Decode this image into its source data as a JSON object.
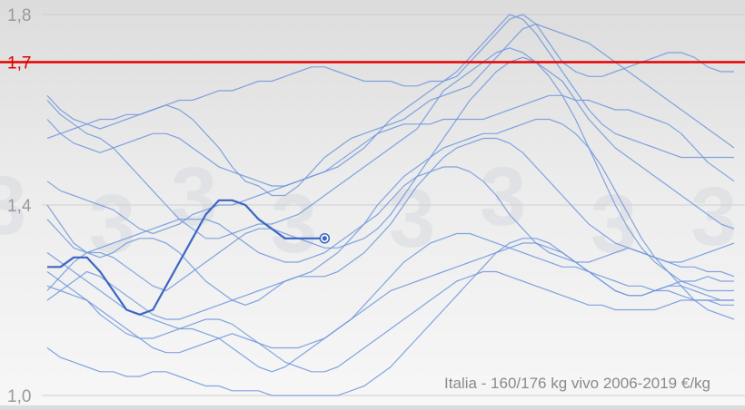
{
  "chart_data": {
    "type": "line",
    "caption": "Italia - 160/176 kg vivo 2006-2019   €/kg",
    "ylim": [
      1.0,
      1.8
    ],
    "yticks": [
      {
        "value": 1.0,
        "label": "1,0"
      },
      {
        "value": 1.4,
        "label": "1,4"
      },
      {
        "value": 1.8,
        "label": "1,8"
      }
    ],
    "reference_line": {
      "value": 1.7,
      "label": "1,7",
      "color": "#e60000"
    },
    "x_weeks": 53,
    "watermark": "3",
    "colors": {
      "historical": "#6f97dd",
      "current": "#3b66c4",
      "grid": "#cfcfcf",
      "tick_text": "#9a9a9a",
      "caption_text": "#8a8a8a"
    },
    "series": [
      {
        "values": [
          1.54,
          1.55,
          1.56,
          1.57,
          1.58,
          1.58,
          1.59,
          1.59,
          1.6,
          1.61,
          1.62,
          1.62,
          1.63,
          1.64,
          1.64,
          1.65,
          1.66,
          1.66,
          1.67,
          1.68,
          1.69,
          1.69,
          1.68,
          1.67,
          1.66,
          1.66,
          1.66,
          1.65,
          1.65,
          1.66,
          1.66,
          1.67,
          1.7,
          1.73,
          1.76,
          1.79,
          1.8,
          1.78,
          1.74,
          1.7,
          1.68,
          1.67,
          1.67,
          1.68,
          1.69,
          1.7,
          1.71,
          1.72,
          1.72,
          1.71,
          1.69,
          1.68,
          1.68
        ]
      },
      {
        "values": [
          1.63,
          1.6,
          1.58,
          1.57,
          1.56,
          1.57,
          1.58,
          1.59,
          1.6,
          1.61,
          1.6,
          1.58,
          1.55,
          1.52,
          1.48,
          1.45,
          1.44,
          1.42,
          1.42,
          1.44,
          1.47,
          1.5,
          1.52,
          1.54,
          1.55,
          1.56,
          1.57,
          1.58,
          1.6,
          1.62,
          1.63,
          1.64,
          1.65,
          1.68,
          1.71,
          1.74,
          1.77,
          1.78,
          1.77,
          1.76,
          1.75,
          1.74,
          1.72,
          1.7,
          1.68,
          1.66,
          1.64,
          1.62,
          1.6,
          1.58,
          1.56,
          1.54,
          1.52
        ]
      },
      {
        "values": [
          1.58,
          1.55,
          1.53,
          1.52,
          1.51,
          1.52,
          1.53,
          1.54,
          1.55,
          1.55,
          1.54,
          1.52,
          1.5,
          1.48,
          1.47,
          1.46,
          1.45,
          1.44,
          1.44,
          1.45,
          1.46,
          1.47,
          1.48,
          1.5,
          1.52,
          1.55,
          1.58,
          1.6,
          1.62,
          1.64,
          1.66,
          1.68,
          1.71,
          1.74,
          1.77,
          1.8,
          1.79,
          1.76,
          1.72,
          1.68,
          1.64,
          1.6,
          1.57,
          1.55,
          1.54,
          1.53,
          1.52,
          1.51,
          1.5,
          1.5,
          1.5,
          1.5,
          1.5
        ]
      },
      {
        "values": [
          1.45,
          1.43,
          1.42,
          1.41,
          1.4,
          1.39,
          1.37,
          1.35,
          1.34,
          1.35,
          1.36,
          1.38,
          1.39,
          1.4,
          1.4,
          1.41,
          1.42,
          1.43,
          1.44,
          1.45,
          1.46,
          1.47,
          1.49,
          1.51,
          1.53,
          1.55,
          1.56,
          1.57,
          1.57,
          1.57,
          1.58,
          1.58,
          1.58,
          1.58,
          1.59,
          1.6,
          1.61,
          1.62,
          1.63,
          1.63,
          1.62,
          1.62,
          1.61,
          1.6,
          1.6,
          1.59,
          1.58,
          1.57,
          1.55,
          1.52,
          1.49,
          1.47,
          1.45
        ]
      },
      {
        "values": [
          1.62,
          1.59,
          1.57,
          1.55,
          1.54,
          1.52,
          1.49,
          1.46,
          1.43,
          1.4,
          1.37,
          1.35,
          1.33,
          1.33,
          1.34,
          1.35,
          1.36,
          1.36,
          1.37,
          1.38,
          1.4,
          1.42,
          1.44,
          1.46,
          1.48,
          1.5,
          1.52,
          1.54,
          1.56,
          1.6,
          1.64,
          1.66,
          1.68,
          1.7,
          1.72,
          1.73,
          1.72,
          1.7,
          1.68,
          1.66,
          1.62,
          1.58,
          1.55,
          1.52,
          1.5,
          1.48,
          1.46,
          1.44,
          1.42,
          1.4,
          1.38,
          1.36,
          1.35
        ]
      },
      {
        "values": [
          1.22,
          1.25,
          1.28,
          1.3,
          1.3,
          1.29,
          1.27,
          1.25,
          1.23,
          1.22,
          1.24,
          1.26,
          1.28,
          1.3,
          1.32,
          1.34,
          1.35,
          1.35,
          1.34,
          1.33,
          1.32,
          1.31,
          1.31,
          1.32,
          1.33,
          1.35,
          1.38,
          1.42,
          1.46,
          1.5,
          1.54,
          1.58,
          1.62,
          1.65,
          1.68,
          1.7,
          1.71,
          1.7,
          1.67,
          1.63,
          1.58,
          1.52,
          1.46,
          1.4,
          1.35,
          1.31,
          1.28,
          1.26,
          1.24,
          1.23,
          1.22,
          1.22,
          1.22
        ]
      },
      {
        "values": [
          1.4,
          1.36,
          1.32,
          1.3,
          1.29,
          1.3,
          1.32,
          1.33,
          1.33,
          1.32,
          1.3,
          1.27,
          1.24,
          1.22,
          1.2,
          1.19,
          1.2,
          1.22,
          1.24,
          1.25,
          1.25,
          1.25,
          1.26,
          1.28,
          1.3,
          1.33,
          1.36,
          1.4,
          1.44,
          1.47,
          1.5,
          1.52,
          1.53,
          1.54,
          1.54,
          1.53,
          1.51,
          1.48,
          1.45,
          1.42,
          1.39,
          1.36,
          1.34,
          1.32,
          1.31,
          1.3,
          1.29,
          1.28,
          1.28,
          1.29,
          1.3,
          1.31,
          1.32
        ]
      },
      {
        "values": [
          1.37,
          1.34,
          1.31,
          1.3,
          1.31,
          1.32,
          1.33,
          1.34,
          1.35,
          1.36,
          1.37,
          1.37,
          1.37,
          1.36,
          1.34,
          1.32,
          1.3,
          1.29,
          1.28,
          1.28,
          1.29,
          1.3,
          1.32,
          1.34,
          1.36,
          1.38,
          1.41,
          1.44,
          1.46,
          1.47,
          1.48,
          1.48,
          1.47,
          1.45,
          1.42,
          1.38,
          1.35,
          1.32,
          1.3,
          1.29,
          1.28,
          1.28,
          1.29,
          1.3,
          1.31,
          1.3,
          1.29,
          1.28,
          1.27,
          1.27,
          1.26,
          1.26,
          1.25
        ]
      },
      {
        "values": [
          1.2,
          1.22,
          1.24,
          1.26,
          1.25,
          1.23,
          1.21,
          1.19,
          1.17,
          1.16,
          1.16,
          1.17,
          1.18,
          1.19,
          1.2,
          1.21,
          1.22,
          1.23,
          1.24,
          1.25,
          1.26,
          1.28,
          1.3,
          1.33,
          1.36,
          1.4,
          1.43,
          1.46,
          1.48,
          1.5,
          1.52,
          1.53,
          1.54,
          1.55,
          1.55,
          1.56,
          1.57,
          1.58,
          1.58,
          1.57,
          1.55,
          1.52,
          1.48,
          1.43,
          1.38,
          1.33,
          1.29,
          1.26,
          1.23,
          1.2,
          1.18,
          1.17,
          1.16
        ]
      },
      {
        "values": [
          1.23,
          1.22,
          1.21,
          1.2,
          1.18,
          1.16,
          1.14,
          1.12,
          1.1,
          1.09,
          1.09,
          1.1,
          1.11,
          1.12,
          1.13,
          1.12,
          1.11,
          1.1,
          1.1,
          1.1,
          1.11,
          1.12,
          1.14,
          1.16,
          1.19,
          1.22,
          1.25,
          1.28,
          1.3,
          1.32,
          1.33,
          1.34,
          1.34,
          1.33,
          1.32,
          1.31,
          1.3,
          1.29,
          1.28,
          1.27,
          1.27,
          1.26,
          1.25,
          1.24,
          1.23,
          1.23,
          1.22,
          1.22,
          1.21,
          1.2,
          1.2,
          1.19,
          1.19
        ]
      },
      {
        "values": [
          1.3,
          1.28,
          1.26,
          1.24,
          1.22,
          1.2,
          1.18,
          1.17,
          1.16,
          1.15,
          1.14,
          1.14,
          1.13,
          1.12,
          1.1,
          1.08,
          1.06,
          1.05,
          1.06,
          1.08,
          1.1,
          1.12,
          1.14,
          1.16,
          1.18,
          1.2,
          1.22,
          1.23,
          1.24,
          1.25,
          1.26,
          1.27,
          1.28,
          1.29,
          1.3,
          1.31,
          1.32,
          1.32,
          1.31,
          1.3,
          1.28,
          1.26,
          1.24,
          1.22,
          1.21,
          1.21,
          1.22,
          1.23,
          1.24,
          1.24,
          1.25,
          1.24,
          1.24
        ]
      },
      {
        "values": [
          1.1,
          1.08,
          1.07,
          1.06,
          1.05,
          1.05,
          1.04,
          1.04,
          1.05,
          1.05,
          1.04,
          1.03,
          1.02,
          1.02,
          1.01,
          1.01,
          1.01,
          1.0,
          1.0,
          1.0,
          1.0,
          1.0,
          1.0,
          1.01,
          1.02,
          1.04,
          1.06,
          1.09,
          1.12,
          1.15,
          1.18,
          1.21,
          1.24,
          1.27,
          1.3,
          1.32,
          1.33,
          1.33,
          1.32,
          1.3,
          1.28,
          1.26,
          1.24,
          1.22,
          1.21,
          1.21,
          1.22,
          1.23,
          1.23,
          1.22,
          1.21,
          1.2,
          1.2
        ]
      },
      {
        "values": [
          1.26,
          1.24,
          1.22,
          1.2,
          1.17,
          1.15,
          1.13,
          1.12,
          1.12,
          1.13,
          1.14,
          1.15,
          1.16,
          1.16,
          1.15,
          1.13,
          1.11,
          1.09,
          1.07,
          1.06,
          1.05,
          1.05,
          1.06,
          1.08,
          1.1,
          1.12,
          1.14,
          1.16,
          1.18,
          1.2,
          1.22,
          1.24,
          1.25,
          1.26,
          1.26,
          1.25,
          1.24,
          1.23,
          1.22,
          1.21,
          1.2,
          1.19,
          1.19,
          1.18,
          1.18,
          1.18,
          1.18,
          1.19,
          1.2,
          1.2,
          1.2,
          1.2,
          1.2
        ]
      }
    ],
    "current": {
      "values": [
        1.27,
        1.27,
        1.29,
        1.29,
        1.26,
        1.22,
        1.18,
        1.17,
        1.18,
        1.23,
        1.28,
        1.33,
        1.38,
        1.41,
        1.41,
        1.4,
        1.37,
        1.35,
        1.33,
        1.33,
        1.33,
        1.33
      ]
    }
  }
}
